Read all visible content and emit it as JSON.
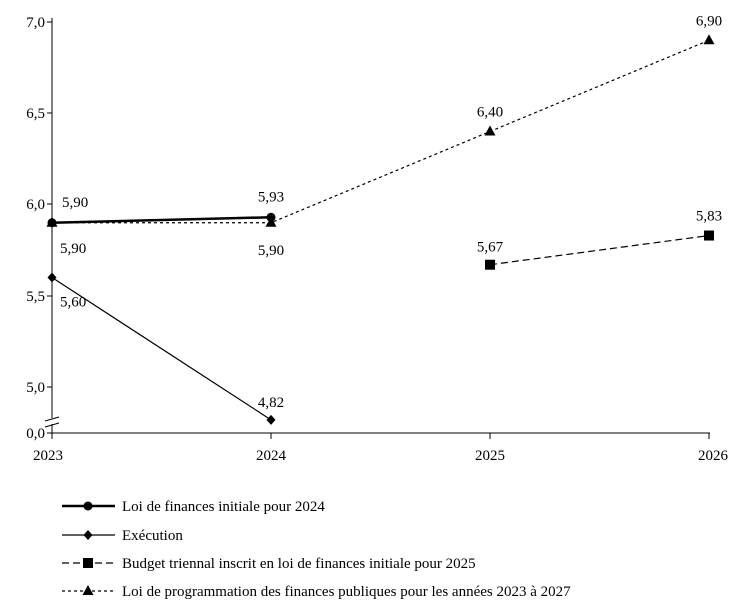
{
  "chart_data": {
    "type": "line",
    "title": "",
    "xlabel": "",
    "ylabel": "",
    "x": [
      "2023",
      "2024",
      "2025",
      "2026"
    ],
    "y_ticks": [
      "7,0",
      "6,5",
      "6,0",
      "5,5",
      "5,0",
      "0,0"
    ],
    "y_axis_break": true,
    "grid": false,
    "legend_position": "bottom",
    "series": [
      {
        "name": "Loi de finances initiale pour 2024",
        "marker": "circle",
        "line_style": "solid-thick",
        "points": [
          {
            "x": "2023",
            "y": 5.9,
            "label": "5,90"
          },
          {
            "x": "2024",
            "y": 5.93,
            "label": "5,93"
          }
        ]
      },
      {
        "name": "Exécution",
        "marker": "diamond",
        "line_style": "solid",
        "points": [
          {
            "x": "2023",
            "y": 5.6,
            "label": "5,60"
          },
          {
            "x": "2024",
            "y": 4.82,
            "label": "4,82"
          }
        ]
      },
      {
        "name": "Budget triennal inscrit en loi de finances initiale pour 2025",
        "marker": "square",
        "line_style": "dashed",
        "points": [
          {
            "x": "2025",
            "y": 5.67,
            "label": "5,67"
          },
          {
            "x": "2026",
            "y": 5.83,
            "label": "5,83"
          }
        ]
      },
      {
        "name": "Loi de programmation des finances publiques pour les années 2023 à 2027",
        "marker": "triangle",
        "line_style": "dotted",
        "points": [
          {
            "x": "2023",
            "y": 5.9,
            "label": "5,90"
          },
          {
            "x": "2024",
            "y": 5.9,
            "label": "5,90"
          },
          {
            "x": "2025",
            "y": 6.4,
            "label": "6,40"
          },
          {
            "x": "2026",
            "y": 6.9,
            "label": "6,90"
          }
        ]
      }
    ]
  }
}
